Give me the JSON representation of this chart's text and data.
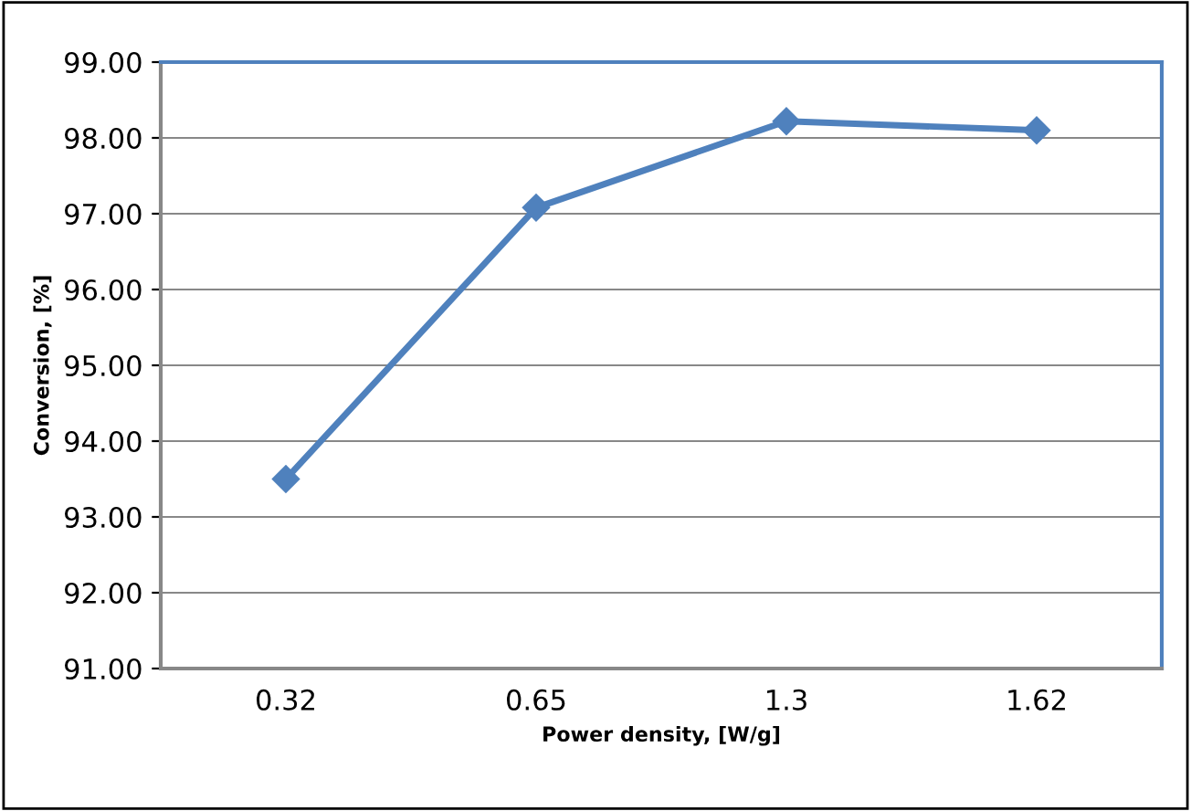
{
  "chart_data": {
    "type": "line",
    "xlabel": "Power density, [W/g]",
    "ylabel": "Conversion, [%]",
    "categories": [
      "0.32",
      "0.65",
      "1.3",
      "1.62"
    ],
    "series": [
      {
        "color": "#4f81bd",
        "values": [
          93.5,
          97.08,
          98.22,
          98.1
        ]
      }
    ],
    "ylim": [
      91,
      99
    ],
    "yticks": [
      {
        "value": 91,
        "label": "91.00"
      },
      {
        "value": 92,
        "label": "92.00"
      },
      {
        "value": 93,
        "label": "93.00"
      },
      {
        "value": 94,
        "label": "94.00"
      },
      {
        "value": 95,
        "label": "95.00"
      },
      {
        "value": 96,
        "label": "96.00"
      },
      {
        "value": 97,
        "label": "97.00"
      },
      {
        "value": 98,
        "label": "98.00"
      },
      {
        "value": 99,
        "label": "99.00"
      }
    ],
    "grid": "y",
    "marker": "diamond",
    "line_style": "solid",
    "legend": false
  }
}
